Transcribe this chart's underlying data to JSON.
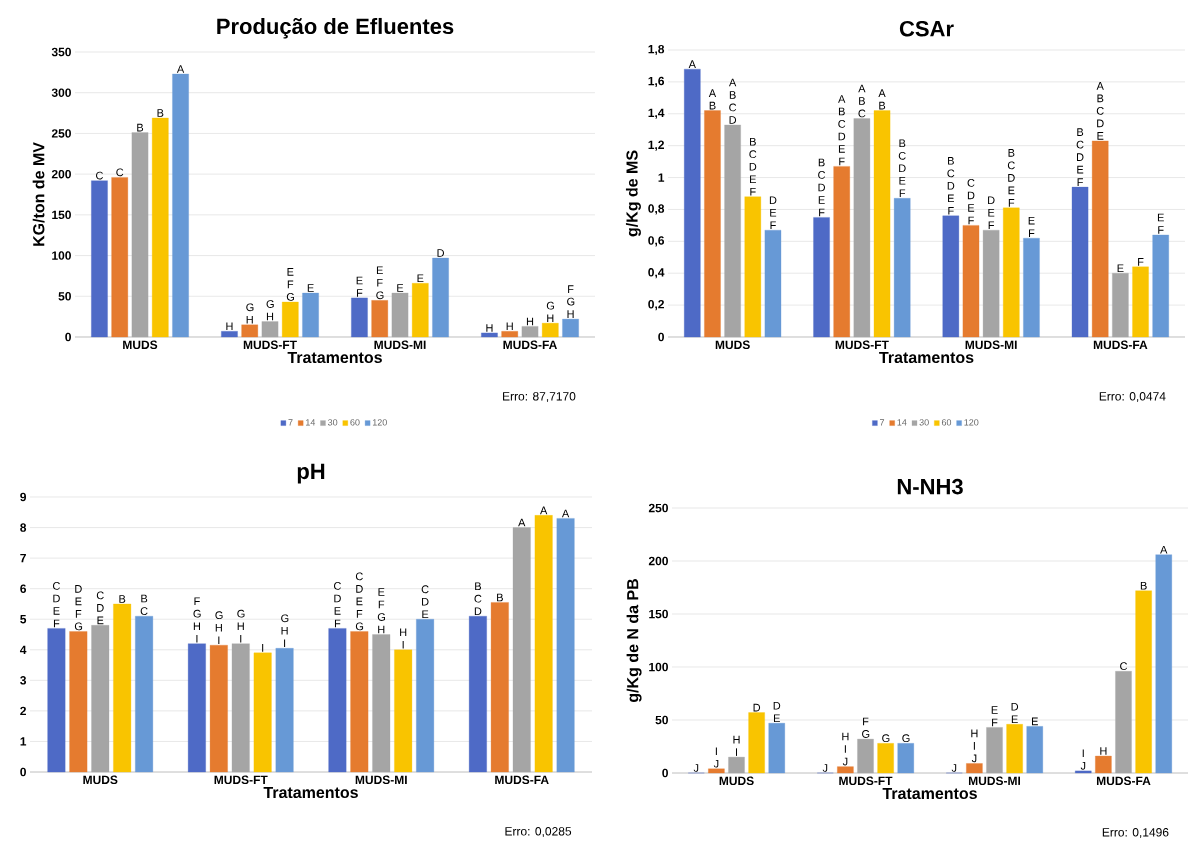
{
  "chart_data": [
    {
      "type": "bar",
      "title": "Produção de Efluentes",
      "xlabel": "Tratamentos",
      "ylabel": "KG/ton de MV",
      "categories": [
        "MUDS",
        "MUDS-FT",
        "MUDS-MI",
        "MUDS-FA"
      ],
      "ylim": [
        0,
        350
      ],
      "yticks": [
        0,
        50,
        100,
        150,
        200,
        250,
        300,
        350
      ],
      "grid": "y",
      "legend": "bottom",
      "annotations": [
        "Erro: 87,7170"
      ],
      "series": [
        {
          "name": "7",
          "color": "#4e6ac6",
          "values": [
            192,
            7,
            48,
            5
          ],
          "value_labels": [
            "C",
            "H",
            "E F",
            "H"
          ]
        },
        {
          "name": "14",
          "color": "#e57b2f",
          "values": [
            196,
            15,
            45,
            7
          ],
          "value_labels": [
            "C",
            "G H",
            "E F G",
            "H"
          ]
        },
        {
          "name": "30",
          "color": "#a5a5a5",
          "values": [
            251,
            19,
            54,
            13
          ],
          "value_labels": [
            "B",
            "G H",
            "E",
            "H"
          ]
        },
        {
          "name": "60",
          "color": "#f9c400",
          "values": [
            269,
            43,
            66,
            17
          ],
          "value_labels": [
            "B",
            "E F G",
            "E",
            "G H"
          ]
        },
        {
          "name": "120",
          "color": "#6799d6",
          "values": [
            323,
            54,
            97,
            22
          ],
          "value_labels": [
            "A",
            "E",
            "D",
            "F G H"
          ]
        }
      ]
    },
    {
      "type": "bar",
      "title": "CSAr",
      "xlabel": "Tratamentos",
      "ylabel": "g/Kg de MS",
      "categories": [
        "MUDS",
        "MUDS-FT",
        "MUDS-MI",
        "MUDS-FA"
      ],
      "ylim": [
        0,
        1.8
      ],
      "yticks": [
        0,
        {
          "value": 0.2,
          "label": "0,2"
        },
        {
          "value": 0.4,
          "label": "0,4"
        },
        {
          "value": 0.6,
          "label": "0,6"
        },
        {
          "value": 0.8,
          "label": "0,8"
        },
        1,
        {
          "value": 1.2,
          "label": "1,2"
        },
        {
          "value": 1.4,
          "label": "1,4"
        },
        {
          "value": 1.6,
          "label": "1,6"
        },
        {
          "value": 1.8,
          "label": "1,8"
        }
      ],
      "grid": "y",
      "legend": "bottom",
      "annotations": [
        "Erro: 0,0474"
      ],
      "series": [
        {
          "name": "7",
          "color": "#4e6ac6",
          "values": [
            1.68,
            0.75,
            0.76,
            0.94
          ],
          "value_labels": [
            "A",
            "B C D E F",
            "B C D E F",
            "B C D E F"
          ]
        },
        {
          "name": "14",
          "color": "#e57b2f",
          "values": [
            1.42,
            1.07,
            0.7,
            1.23
          ],
          "value_labels": [
            "A B",
            "A B C D E F",
            "C D E F",
            "A B C D E"
          ]
        },
        {
          "name": "30",
          "color": "#a5a5a5",
          "values": [
            1.33,
            1.37,
            0.67,
            0.4
          ],
          "value_labels": [
            "A B C D",
            "A B C",
            "D E F",
            "E"
          ]
        },
        {
          "name": "60",
          "color": "#f9c400",
          "values": [
            0.88,
            1.42,
            0.81,
            0.44
          ],
          "value_labels": [
            "B C D E F",
            "A B",
            "B C D E F",
            "F"
          ]
        },
        {
          "name": "120",
          "color": "#6799d6",
          "values": [
            0.67,
            0.87,
            0.62,
            0.64
          ],
          "value_labels": [
            "D E F",
            "B C D E F",
            "E F",
            "E F"
          ]
        }
      ]
    },
    {
      "type": "bar",
      "title": "pH",
      "xlabel": "Tratamentos",
      "categories": [
        "MUDS",
        "MUDS-FT",
        "MUDS-MI",
        "MUDS-FA"
      ],
      "ylim": [
        0,
        9
      ],
      "yticks": [
        0,
        1,
        2,
        3,
        4,
        5,
        6,
        7,
        8,
        9
      ],
      "grid": "y",
      "legend": "bottom",
      "annotations": [
        "Erro: 0,0285"
      ],
      "series": [
        {
          "name": "7",
          "color": "#4e6ac6",
          "values": [
            4.7,
            4.2,
            4.7,
            5.1
          ],
          "value_labels": [
            "C D E F",
            "F G H I",
            "C D E F",
            "B C D"
          ]
        },
        {
          "name": "14",
          "color": "#e57b2f",
          "values": [
            4.6,
            4.15,
            4.6,
            5.55
          ],
          "value_labels": [
            "D E F G",
            "G H I",
            "C D E F G",
            "B"
          ]
        },
        {
          "name": "30",
          "color": "#a5a5a5",
          "values": [
            4.8,
            4.2,
            4.5,
            8.0
          ],
          "value_labels": [
            "C D E",
            "G H I",
            "E F G H",
            "A"
          ]
        },
        {
          "name": "60",
          "color": "#f9c400",
          "values": [
            5.5,
            3.9,
            4.0,
            8.4
          ],
          "value_labels": [
            "B",
            "I",
            "H I",
            "A"
          ]
        },
        {
          "name": "120",
          "color": "#6799d6",
          "values": [
            5.1,
            4.05,
            5.0,
            8.3
          ],
          "value_labels": [
            "B C",
            "G H I",
            "C D E",
            "A"
          ]
        }
      ]
    },
    {
      "type": "bar",
      "title": "N-NH3",
      "xlabel": "Tratamentos",
      "ylabel": "g/Kg de N da PB",
      "categories": [
        "MUDS",
        "MUDS-FT",
        "MUDS-MI",
        "MUDS-FA"
      ],
      "ylim": [
        0,
        250
      ],
      "yticks": [
        0,
        50,
        100,
        150,
        200,
        250
      ],
      "grid": "y",
      "legend": "bottom",
      "annotations": [
        "Erro: 0,1496"
      ],
      "series": [
        {
          "name": "7",
          "color": "#4e6ac6",
          "values": [
            0,
            0,
            0,
            2
          ],
          "value_labels": [
            "J",
            "J",
            "J",
            "I J"
          ]
        },
        {
          "name": "14",
          "color": "#e57b2f",
          "values": [
            4,
            6,
            9,
            16
          ],
          "value_labels": [
            "I J",
            "H I J",
            "H I J",
            "H"
          ]
        },
        {
          "name": "30",
          "color": "#a5a5a5",
          "values": [
            15,
            32,
            43,
            96
          ],
          "value_labels": [
            "H I",
            "F G",
            "E F",
            "C"
          ]
        },
        {
          "name": "60",
          "color": "#f9c400",
          "values": [
            57,
            28,
            46,
            172
          ],
          "value_labels": [
            "D",
            "G",
            "D E",
            "B"
          ]
        },
        {
          "name": "120",
          "color": "#6799d6",
          "values": [
            47,
            28,
            44,
            206
          ],
          "value_labels": [
            "D E",
            "G",
            "E",
            "A"
          ]
        }
      ]
    }
  ]
}
